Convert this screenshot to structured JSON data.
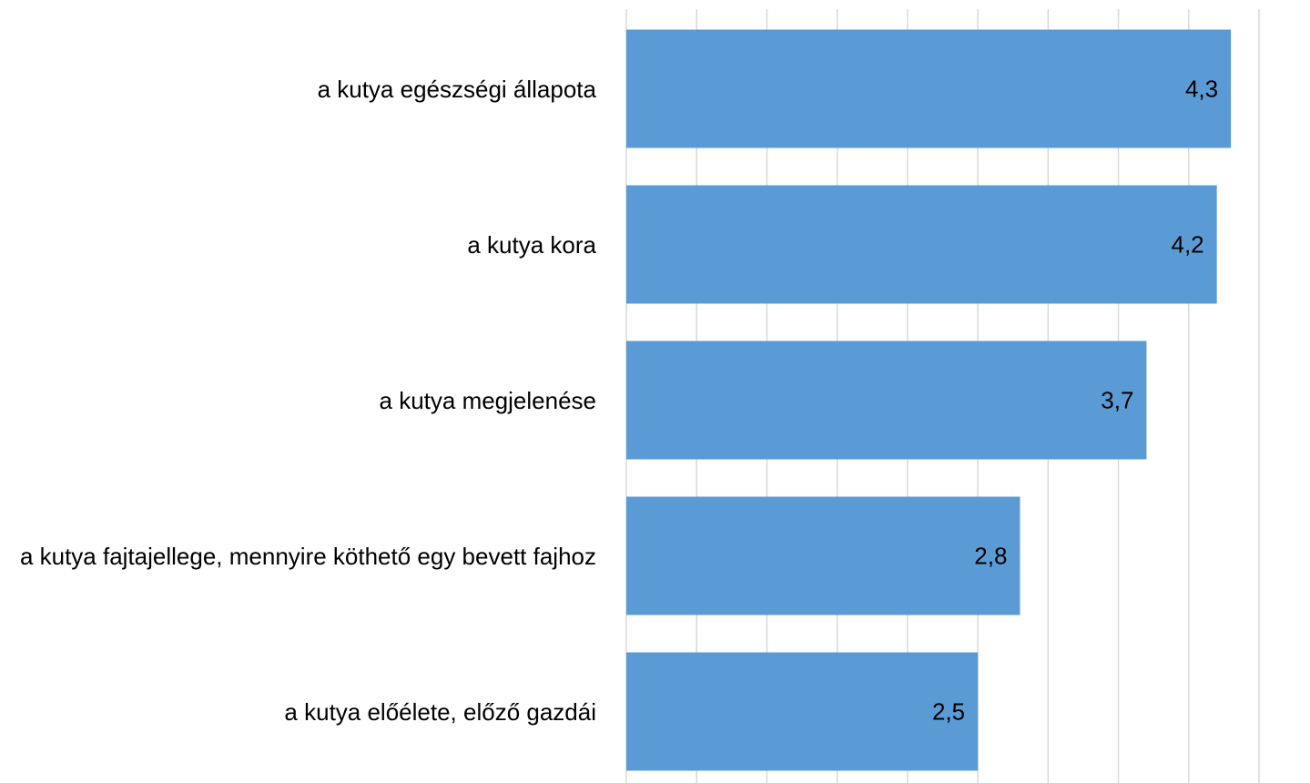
{
  "chart_data": {
    "type": "bar",
    "orientation": "horizontal",
    "categories": [
      "a kutya egészségi állapota",
      "a kutya kora",
      "a kutya megjelenése",
      "a kutya fajtajellege, mennyire köthető egy bevett fajhoz",
      "a kutya előélete, előző gazdái"
    ],
    "values": [
      4.3,
      4.2,
      3.7,
      2.8,
      2.5
    ],
    "value_labels": [
      "4,3",
      "4,2",
      "3,7",
      "2,8",
      "2,5"
    ],
    "color": "#5b9bd5",
    "xlim": [
      0,
      4.5
    ],
    "xticks": [
      0,
      0.5,
      1,
      1.5,
      2,
      2.5,
      3,
      3.5,
      4,
      4.5
    ],
    "grid": true
  }
}
